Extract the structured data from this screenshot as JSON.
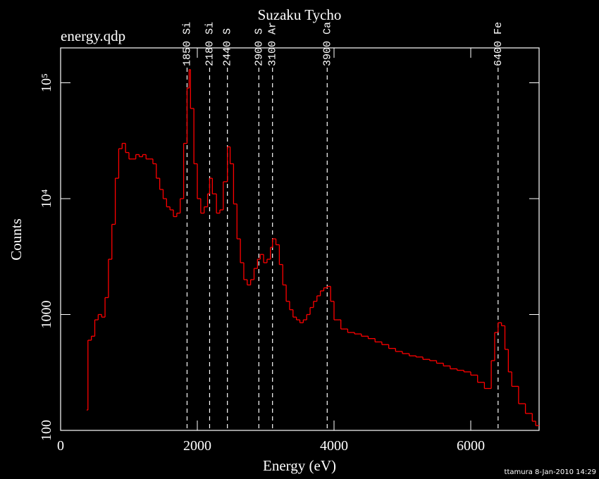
{
  "chart_data": {
    "type": "step",
    "title": "Suzaku Tycho",
    "subtitle": "energy.qdp",
    "xlabel": "Energy (eV)",
    "ylabel": "Counts",
    "footer": "ttamura  8-Jan-2010 14:29",
    "log_y": true,
    "xlim": [
      0,
      7000
    ],
    "ylim": [
      100,
      200000
    ],
    "xticks": [
      0,
      2000,
      4000,
      6000
    ],
    "yticks": [
      100,
      1000,
      {
        "value": 10000,
        "label": "10⁴"
      },
      {
        "value": 100000,
        "label": "10⁵"
      }
    ],
    "lines": [
      {
        "x": 1850,
        "label": "1850 Si"
      },
      {
        "x": 2180,
        "label": "2180 Si"
      },
      {
        "x": 2440,
        "label": "2440 S"
      },
      {
        "x": 2900,
        "label": "2900 S"
      },
      {
        "x": 3100,
        "label": "3100 Ar"
      },
      {
        "x": 3900,
        "label": "3900 Ca"
      },
      {
        "x": 6400,
        "label": "6400 Fe"
      }
    ],
    "series": [
      {
        "name": "Counts",
        "color": "#ff0000",
        "x": [
          380,
          400,
          450,
          500,
          550,
          600,
          650,
          700,
          750,
          800,
          850,
          900,
          950,
          1000,
          1050,
          1100,
          1150,
          1200,
          1250,
          1300,
          1350,
          1400,
          1450,
          1500,
          1550,
          1600,
          1650,
          1700,
          1750,
          1800,
          1850,
          1880,
          1900,
          1950,
          2000,
          2050,
          2100,
          2150,
          2180,
          2220,
          2280,
          2330,
          2380,
          2440,
          2480,
          2530,
          2580,
          2630,
          2680,
          2730,
          2780,
          2830,
          2880,
          2920,
          2970,
          3020,
          3070,
          3100,
          3150,
          3200,
          3250,
          3300,
          3350,
          3400,
          3450,
          3500,
          3550,
          3600,
          3650,
          3700,
          3750,
          3800,
          3850,
          3900,
          3950,
          4000,
          4100,
          4200,
          4300,
          4400,
          4500,
          4600,
          4700,
          4800,
          4900,
          5000,
          5100,
          5200,
          5300,
          5400,
          5500,
          5600,
          5700,
          5800,
          5900,
          6000,
          6100,
          6200,
          6300,
          6350,
          6400,
          6450,
          6500,
          6550,
          6600,
          6700,
          6800,
          6900,
          6950
        ],
        "values": [
          150,
          600,
          650,
          900,
          1000,
          950,
          1400,
          3000,
          6000,
          15000,
          27000,
          30000,
          25000,
          22000,
          22000,
          24000,
          23000,
          24000,
          22000,
          22000,
          20000,
          15000,
          12000,
          10000,
          8500,
          8000,
          7000,
          7500,
          10000,
          30000,
          90000,
          130000,
          60000,
          20000,
          10000,
          7500,
          8500,
          11000,
          15000,
          11000,
          7500,
          8000,
          14000,
          28000,
          20000,
          9000,
          4500,
          2800,
          2000,
          1800,
          2000,
          2500,
          3000,
          3300,
          2800,
          3000,
          3800,
          4500,
          4000,
          2700,
          1800,
          1300,
          1100,
          950,
          900,
          850,
          900,
          1000,
          1150,
          1300,
          1450,
          1600,
          1700,
          1750,
          1300,
          900,
          750,
          700,
          680,
          650,
          620,
          580,
          550,
          510,
          480,
          460,
          440,
          430,
          410,
          400,
          380,
          360,
          340,
          330,
          320,
          300,
          260,
          230,
          400,
          700,
          850,
          800,
          500,
          320,
          240,
          170,
          140,
          120,
          110
        ]
      }
    ]
  }
}
